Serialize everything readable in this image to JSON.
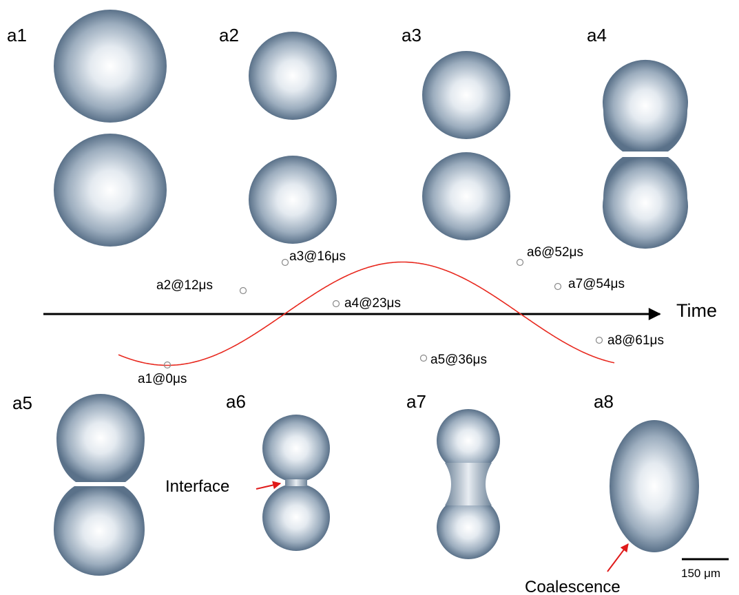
{
  "panels": [
    {
      "label": "a1"
    },
    {
      "label": "a2"
    },
    {
      "label": "a3"
    },
    {
      "label": "a4"
    },
    {
      "label": "a5"
    },
    {
      "label": "a6"
    },
    {
      "label": "a7"
    },
    {
      "label": "a8"
    }
  ],
  "timeline": {
    "axis_label": "Time",
    "points": [
      {
        "label": "a1@0μs",
        "time_us": 0
      },
      {
        "label": "a2@12μs",
        "time_us": 12
      },
      {
        "label": "a3@16μs",
        "time_us": 16
      },
      {
        "label": "a4@23μs",
        "time_us": 23
      },
      {
        "label": "a5@36μs",
        "time_us": 36
      },
      {
        "label": "a6@52μs",
        "time_us": 52
      },
      {
        "label": "a7@54μs",
        "time_us": 54
      },
      {
        "label": "a8@61μs",
        "time_us": 61
      }
    ]
  },
  "annotations": {
    "interface": "Interface",
    "coalescence": "Coalescence"
  },
  "scale_bar": {
    "label": "150 μm"
  },
  "colors": {
    "droplet_center": "#ffffff",
    "droplet_edge": "#5a7189",
    "wave": "#e8281e",
    "axis": "#000000",
    "arrow": "#e01a1a"
  }
}
